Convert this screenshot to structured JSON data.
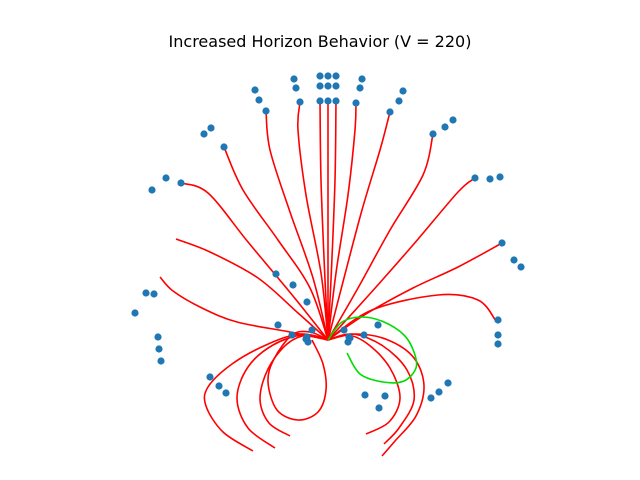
{
  "chart_data": {
    "type": "line",
    "title": "Increased Horizon Behavior (V = 220)",
    "xlabel": "",
    "ylabel": "",
    "axes_visible": false,
    "grid": false,
    "legend": "none",
    "colors": {
      "trajectory": "#ff0000",
      "selected_trajectory": "#00dd00",
      "marker": "#1f77b4"
    },
    "origin": [
      0,
      0
    ],
    "series": [
      {
        "trajectory": [
          [
            0,
            0
          ],
          [
            -18,
            -8
          ],
          [
            -36,
            -5
          ],
          [
            -54,
            19
          ],
          [
            -60,
            42
          ],
          [
            -51,
            70
          ],
          [
            -30,
            80
          ],
          [
            -10,
            72
          ],
          [
            -2,
            50
          ],
          [
            -5,
            24
          ],
          [
            -16,
            0
          ]
        ],
        "points": [
          [
            -20,
            2
          ],
          [
            -21,
            -3
          ],
          [
            -16,
            -10
          ]
        ]
      },
      {
        "trajectory": [
          [
            0,
            0
          ],
          [
            -20,
            -5
          ],
          [
            -41,
            4
          ],
          [
            -60,
            29
          ],
          [
            -68,
            59
          ],
          [
            -59,
            83
          ],
          [
            -38,
            96
          ]
        ],
        "points": [
          [
            -22,
            -1
          ],
          [
            -36,
            -5
          ],
          [
            -50,
            -15
          ]
        ]
      },
      {
        "trajectory": [
          [
            0,
            0
          ],
          [
            -25,
            -5
          ],
          [
            -55,
            5
          ],
          [
            -80,
            27
          ],
          [
            -91,
            58
          ],
          [
            -80,
            88
          ],
          [
            -53,
            108
          ]
        ],
        "points": [
          [
            -21,
            -38
          ],
          [
            -35,
            -55
          ],
          [
            -52,
            -66
          ]
        ]
      },
      {
        "trajectory": [
          [
            0,
            0
          ],
          [
            -28,
            -6
          ],
          [
            -62,
            5
          ],
          [
            -96,
            24
          ],
          [
            -120,
            47
          ],
          [
            -122,
            66
          ],
          [
            -105,
            92
          ],
          [
            -75,
            111
          ]
        ],
        "points": [
          [
            -118,
            37
          ],
          [
            -109,
            46
          ],
          [
            -102,
            53
          ]
        ]
      },
      {
        "trajectory": [
          [
            0,
            0
          ],
          [
            -38,
            -8
          ],
          [
            -91,
            -18
          ],
          [
            -126,
            -32
          ],
          [
            -155,
            -49
          ],
          [
            -168,
            -63
          ]
        ],
        "points": [
          [
            -170,
            -3
          ],
          [
            -169,
            9
          ],
          [
            -167,
            21
          ]
        ]
      },
      {
        "trajectory": [
          [
            0,
            0
          ],
          [
            -30,
            -27
          ],
          [
            -70,
            -62
          ],
          [
            -118,
            -88
          ],
          [
            -152,
            -101
          ]
        ],
        "points": [
          [
            -174,
            -46
          ],
          [
            -182,
            -47
          ],
          [
            -193,
            -27
          ]
        ]
      },
      {
        "trajectory": [
          [
            0,
            0
          ],
          [
            -35,
            -44
          ],
          [
            -80,
            -98
          ],
          [
            -120,
            -147
          ],
          [
            -147,
            -157
          ]
        ],
        "points": [
          [
            -176,
            -150
          ],
          [
            -162,
            -162
          ],
          [
            -147,
            -157
          ]
        ]
      },
      {
        "trajectory": [
          [
            0,
            0
          ],
          [
            -18,
            -52
          ],
          [
            -50,
            -100
          ],
          [
            -85,
            -150
          ],
          [
            -104,
            -193
          ]
        ],
        "points": [
          [
            -124,
            -206
          ],
          [
            -117,
            -212
          ],
          [
            -104,
            -193
          ]
        ]
      },
      {
        "trajectory": [
          [
            0,
            0
          ],
          [
            -15,
            -62
          ],
          [
            -38,
            -128
          ],
          [
            -58,
            -190
          ],
          [
            -62,
            -229
          ]
        ],
        "points": [
          [
            -73,
            -250
          ],
          [
            -69,
            -240
          ],
          [
            -62,
            -229
          ]
        ]
      },
      {
        "trajectory": [
          [
            0,
            0
          ],
          [
            -7,
            -67
          ],
          [
            -22,
            -145
          ],
          [
            -30,
            -210
          ],
          [
            -28,
            -238
          ]
        ],
        "points": [
          [
            -34,
            -261
          ],
          [
            -32,
            -252
          ],
          [
            -28,
            -238
          ]
        ]
      },
      {
        "trajectory": [
          [
            0,
            0
          ],
          [
            -3,
            -60
          ],
          [
            -7,
            -160
          ],
          [
            -8,
            -238
          ]
        ],
        "points": [
          [
            -8,
            -264
          ],
          [
            -8,
            -254
          ],
          [
            -8,
            -239
          ]
        ]
      },
      {
        "trajectory": [
          [
            0,
            0
          ],
          [
            0,
            -120
          ],
          [
            0,
            -239
          ]
        ],
        "points": [
          [
            0,
            -264
          ],
          [
            0,
            -254
          ],
          [
            0,
            -239
          ]
        ]
      },
      {
        "trajectory": [
          [
            0,
            0
          ],
          [
            3,
            -60
          ],
          [
            7,
            -160
          ],
          [
            8,
            -238
          ]
        ],
        "points": [
          [
            8,
            -264
          ],
          [
            8,
            -254
          ],
          [
            8,
            -239
          ]
        ]
      },
      {
        "trajectory": [
          [
            0,
            0
          ],
          [
            8,
            -67
          ],
          [
            20,
            -145
          ],
          [
            27,
            -210
          ],
          [
            28,
            -237
          ]
        ],
        "points": [
          [
            34,
            -261
          ],
          [
            32,
            -252
          ],
          [
            28,
            -237
          ]
        ]
      },
      {
        "trajectory": [
          [
            0,
            0
          ],
          [
            16,
            -62
          ],
          [
            34,
            -130
          ],
          [
            52,
            -190
          ],
          [
            62,
            -228
          ]
        ],
        "points": [
          [
            75,
            -249
          ],
          [
            71,
            -239
          ],
          [
            62,
            -228
          ]
        ]
      },
      {
        "trajectory": [
          [
            0,
            0
          ],
          [
            30,
            -52
          ],
          [
            62,
            -110
          ],
          [
            95,
            -165
          ],
          [
            105,
            -206
          ]
        ],
        "points": [
          [
            125,
            -220
          ],
          [
            117,
            -213
          ],
          [
            105,
            -206
          ]
        ]
      },
      {
        "trajectory": [
          [
            0,
            0
          ],
          [
            40,
            -44
          ],
          [
            85,
            -95
          ],
          [
            130,
            -148
          ],
          [
            147,
            -162
          ]
        ],
        "points": [
          [
            172,
            -163
          ],
          [
            162,
            -161
          ],
          [
            147,
            -162
          ]
        ]
      },
      {
        "trajectory": [
          [
            0,
            0
          ],
          [
            38,
            -26
          ],
          [
            85,
            -52
          ],
          [
            130,
            -73
          ],
          [
            174,
            -97
          ]
        ],
        "points": [
          [
            193,
            -73
          ],
          [
            186,
            -80
          ],
          [
            174,
            -97
          ]
        ]
      },
      {
        "trajectory": [
          [
            0,
            0
          ],
          [
            44,
            -30
          ],
          [
            110,
            -45
          ],
          [
            150,
            -40
          ],
          [
            168,
            -19
          ]
        ],
        "points": [
          [
            170,
            -20
          ],
          [
            170,
            -5
          ],
          [
            170,
            4
          ]
        ]
      },
      {
        "trajectory": [
          [
            0,
            0
          ],
          [
            28,
            -6
          ],
          [
            60,
            0
          ],
          [
            86,
            18
          ],
          [
            96,
            46
          ],
          [
            88,
            76
          ],
          [
            67,
            101
          ],
          [
            54,
            116
          ]
        ],
        "points": [
          [
            120,
            43
          ],
          [
            111,
            52
          ],
          [
            103,
            58
          ]
        ]
      },
      {
        "trajectory": [
          [
            0,
            0
          ],
          [
            25,
            -6
          ],
          [
            55,
            6
          ],
          [
            79,
            30
          ],
          [
            86,
            60
          ],
          [
            71,
            88
          ],
          [
            56,
            104
          ]
        ],
        "points": [
          [
            57,
            56
          ],
          [
            37,
            55
          ],
          [
            51,
            68
          ]
        ]
      },
      {
        "trajectory": [
          [
            0,
            0
          ],
          [
            20,
            -5
          ],
          [
            41,
            5
          ],
          [
            62,
            28
          ],
          [
            72,
            58
          ],
          [
            61,
            82
          ],
          [
            38,
            94
          ]
        ],
        "points": [
          [
            21,
            -3
          ],
          [
            36,
            -5
          ],
          [
            50,
            -15
          ]
        ]
      }
    ],
    "selected_series": {
      "trajectory": [
        [
          0,
          0
        ],
        [
          14,
          -18
        ],
        [
          34,
          -23
        ],
        [
          56,
          -18
        ],
        [
          76,
          -5
        ],
        [
          86,
          12
        ],
        [
          88,
          28
        ],
        [
          76,
          41
        ],
        [
          55,
          42
        ],
        [
          32,
          34
        ],
        [
          19,
          13
        ]
      ],
      "points": [
        [
          20,
          2
        ],
        [
          22,
          -2
        ],
        [
          16,
          -10
        ]
      ]
    }
  }
}
